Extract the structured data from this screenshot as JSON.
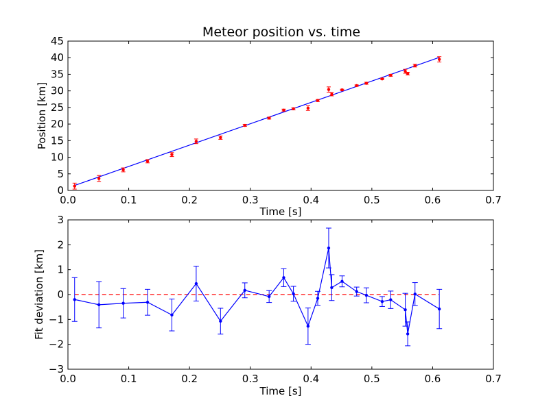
{
  "chart_data": [
    {
      "type": "scatter",
      "title": "Meteor position vs. time",
      "xlabel": "Time [s]",
      "ylabel": "Position [km]",
      "xlim": [
        0,
        0.7
      ],
      "ylim": [
        0,
        45
      ],
      "xticks": [
        "0.0",
        "0.1",
        "0.2",
        "0.3",
        "0.4",
        "0.5",
        "0.6",
        "0.7"
      ],
      "yticks": [
        "0",
        "5",
        "10",
        "15",
        "20",
        "25",
        "30",
        "35",
        "40",
        "45"
      ],
      "grid": false,
      "colors": {
        "points": "#ff0000",
        "fit": "#0000ff"
      },
      "series": [
        {
          "x": [
            0.011,
            0.051,
            0.091,
            0.131,
            0.171,
            0.211,
            0.251,
            0.291,
            0.331,
            0.355,
            0.371,
            0.395,
            0.411,
            0.429,
            0.434,
            0.451,
            0.475,
            0.491,
            0.517,
            0.531,
            0.555,
            0.559,
            0.571,
            0.611
          ],
          "y": [
            1.3,
            3.6,
            6.2,
            8.8,
            10.8,
            14.8,
            15.9,
            19.6,
            21.8,
            24.2,
            24.6,
            24.8,
            27.1,
            30.4,
            29.0,
            30.3,
            31.6,
            32.3,
            33.6,
            34.7,
            35.9,
            35.2,
            37.6,
            39.5
          ],
          "yerr": [
            0.9,
            0.9,
            0.6,
            0.5,
            0.6,
            0.7,
            0.5,
            0.3,
            0.3,
            0.3,
            0.3,
            0.7,
            0.3,
            0.8,
            0.5,
            0.2,
            0.2,
            0.3,
            0.2,
            0.3,
            0.6,
            0.4,
            0.4,
            0.8
          ]
        }
      ],
      "fit_line": {
        "x": [
          0.011,
          0.611
        ],
        "y": [
          1.5,
          40.1
        ]
      }
    },
    {
      "type": "line",
      "title": "",
      "xlabel": "Time [s]",
      "ylabel": "Fit deviation [km]",
      "xlim": [
        0,
        0.7
      ],
      "ylim": [
        -3,
        3
      ],
      "xticks": [
        "0.0",
        "0.1",
        "0.2",
        "0.3",
        "0.4",
        "0.5",
        "0.6",
        "0.7"
      ],
      "yticks": [
        "−3",
        "−2",
        "−1",
        "0",
        "1",
        "2",
        "3"
      ],
      "grid": false,
      "colors": {
        "line": "#0000ff",
        "zero_line": "#ff0000"
      },
      "series": [
        {
          "x": [
            0.011,
            0.051,
            0.091,
            0.131,
            0.171,
            0.211,
            0.251,
            0.291,
            0.331,
            0.355,
            0.371,
            0.395,
            0.411,
            0.429,
            0.434,
            0.451,
            0.475,
            0.491,
            0.517,
            0.531,
            0.555,
            0.559,
            0.571,
            0.611
          ],
          "y": [
            -0.2,
            -0.41,
            -0.35,
            -0.31,
            -0.82,
            0.44,
            -1.07,
            0.17,
            -0.08,
            0.68,
            0.03,
            -1.27,
            -0.15,
            1.87,
            0.28,
            0.53,
            0.12,
            -0.03,
            -0.28,
            -0.21,
            -0.61,
            -1.58,
            0.02,
            -0.58
          ],
          "yerr": [
            0.88,
            0.93,
            0.59,
            0.52,
            0.64,
            0.7,
            0.52,
            0.3,
            0.24,
            0.36,
            0.3,
            0.73,
            0.28,
            0.8,
            0.52,
            0.22,
            0.18,
            0.3,
            0.2,
            0.35,
            0.66,
            0.48,
            0.46,
            0.79
          ]
        }
      ],
      "reference_line": {
        "y": 0,
        "style": "dashed"
      }
    }
  ]
}
